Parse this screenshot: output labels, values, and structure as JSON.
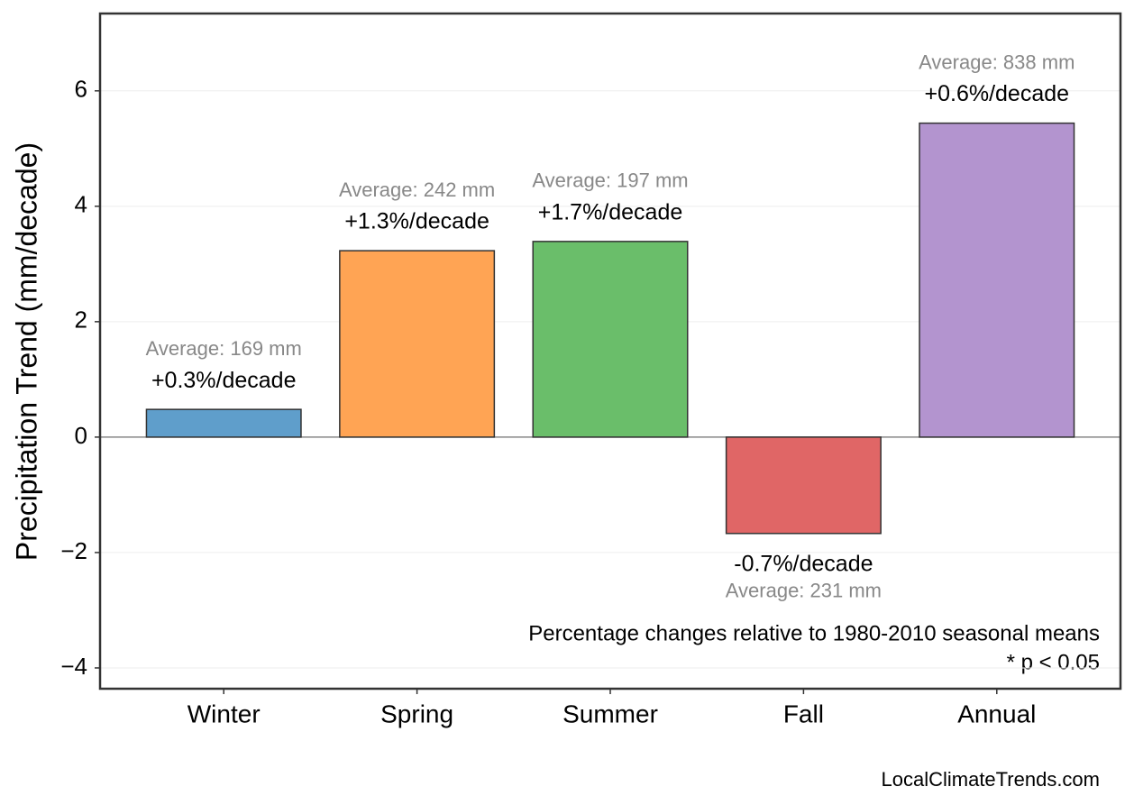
{
  "chart_data": {
    "type": "bar",
    "y_label": "Precipitation Trend (mm/decade)",
    "categories": [
      "Winter",
      "Spring",
      "Summer",
      "Fall",
      "Annual"
    ],
    "values": [
      0.48,
      3.23,
      3.39,
      -1.67,
      5.44
    ],
    "colors": [
      "#5f9ecb",
      "#ffa454",
      "#6abe6a",
      "#e06666",
      "#b394cf"
    ],
    "change_labels": [
      "+0.3%/decade",
      "+1.3%/decade",
      "+1.7%/decade",
      "-0.7%/decade",
      "+0.6%/decade"
    ],
    "average_labels": [
      "Average: 169 mm",
      "Average: 242 mm",
      "Average: 197 mm",
      "Average: 231 mm",
      "Average: 838 mm"
    ],
    "ylim": [
      -4.36,
      7.34
    ],
    "yticks": [
      {
        "value": -4,
        "label": "−4"
      },
      {
        "value": -2,
        "label": "−2"
      },
      0,
      2,
      4,
      6
    ],
    "grid": true,
    "notes": [
      "Percentage changes relative to 1980-2010 seasonal means",
      "* p < 0.05"
    ],
    "source": "LocalClimateTrends.com"
  }
}
